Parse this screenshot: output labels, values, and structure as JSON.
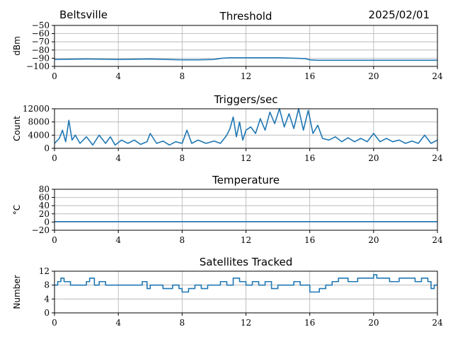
{
  "header": {
    "location": "Beltsville",
    "date": "2025/02/01"
  },
  "colors": {
    "series": "#1f77b4",
    "grid": "#b0b0b0",
    "axis": "#000000"
  },
  "chart_data": [
    {
      "type": "line",
      "title": "Threshold",
      "ylabel": "dBm",
      "xlim": [
        0,
        24
      ],
      "ylim": [
        -100,
        -50
      ],
      "xticks": [
        0,
        4,
        8,
        12,
        16,
        20,
        24
      ],
      "yticks": [
        -100,
        -90,
        -80,
        -70,
        -60,
        -50
      ],
      "grid": true,
      "series": [
        {
          "x": [
            0,
            2,
            4,
            6,
            8,
            9,
            10,
            10.5,
            11,
            12,
            13,
            14,
            15,
            15.7,
            16,
            16.5,
            18,
            20,
            22,
            24
          ],
          "y": [
            -91.5,
            -91,
            -91.5,
            -91,
            -92,
            -92,
            -91.5,
            -90,
            -89.5,
            -89.5,
            -89.5,
            -89.5,
            -90,
            -90.5,
            -92,
            -92.5,
            -92.5,
            -92.5,
            -92.5,
            -92.5
          ]
        }
      ]
    },
    {
      "type": "line",
      "title": "Triggers/sec",
      "ylabel": "Count",
      "xlim": [
        0,
        24
      ],
      "ylim": [
        0,
        12000
      ],
      "xticks": [
        0,
        4,
        8,
        12,
        16,
        20,
        24
      ],
      "yticks": [
        0,
        4000,
        8000,
        12000
      ],
      "grid": true,
      "series": [
        {
          "x": [
            0,
            0.3,
            0.5,
            0.7,
            0.9,
            1.1,
            1.3,
            1.6,
            2,
            2.4,
            2.8,
            3.2,
            3.5,
            3.8,
            4.2,
            4.6,
            5,
            5.4,
            5.8,
            6,
            6.4,
            6.8,
            7.2,
            7.6,
            8,
            8.3,
            8.6,
            9,
            9.5,
            10,
            10.4,
            10.8,
            11,
            11.2,
            11.4,
            11.6,
            11.8,
            12,
            12.3,
            12.6,
            12.9,
            13.2,
            13.5,
            13.8,
            14.1,
            14.4,
            14.7,
            15,
            15.3,
            15.6,
            15.9,
            16.2,
            16.5,
            16.8,
            17.2,
            17.6,
            18,
            18.4,
            18.8,
            19.2,
            19.6,
            20,
            20.4,
            20.8,
            21.2,
            21.6,
            22,
            22.4,
            22.8,
            23.2,
            23.6,
            24
          ],
          "y": [
            1500,
            3000,
            5500,
            2000,
            8500,
            2500,
            4000,
            1500,
            3500,
            1000,
            4000,
            1500,
            3500,
            1000,
            2500,
            1500,
            2500,
            1200,
            2000,
            4500,
            1500,
            2200,
            1000,
            2000,
            1500,
            5500,
            1500,
            2500,
            1500,
            2200,
            1500,
            4000,
            6000,
            9500,
            3500,
            8000,
            2500,
            5500,
            6500,
            4500,
            9000,
            5500,
            11000,
            7500,
            12000,
            6500,
            10500,
            6000,
            12000,
            5500,
            11500,
            4500,
            7000,
            3000,
            2500,
            3500,
            2000,
            3200,
            2000,
            3000,
            2000,
            4500,
            2000,
            3000,
            2000,
            2500,
            1500,
            2200,
            1500,
            4000,
            1500,
            2500
          ]
        }
      ]
    },
    {
      "type": "line",
      "title": "Temperature",
      "ylabel": "°C",
      "xlim": [
        0,
        24
      ],
      "ylim": [
        -20,
        80
      ],
      "xticks": [
        0,
        4,
        8,
        12,
        16,
        20,
        24
      ],
      "yticks": [
        -20,
        0,
        20,
        40,
        60,
        80
      ],
      "grid": true,
      "series": [
        {
          "x": [
            0,
            24
          ],
          "y": [
            1,
            1
          ]
        }
      ]
    },
    {
      "type": "line",
      "title": "Satellites Tracked",
      "ylabel": "Number",
      "xlim": [
        0,
        24
      ],
      "ylim": [
        0,
        12
      ],
      "xticks": [
        0,
        4,
        8,
        12,
        16,
        20,
        24
      ],
      "yticks": [
        0,
        4,
        8,
        12
      ],
      "grid": true,
      "step": true,
      "series": [
        {
          "x": [
            0,
            0.2,
            0.4,
            0.6,
            1.0,
            1.5,
            2.0,
            2.2,
            2.5,
            2.8,
            3.2,
            4.0,
            5.0,
            5.5,
            5.8,
            6.0,
            6.4,
            6.8,
            7.4,
            7.8,
            8.0,
            8.4,
            8.8,
            9.2,
            9.6,
            10.0,
            10.4,
            10.8,
            11.2,
            11.6,
            12.0,
            12.4,
            12.8,
            13.2,
            13.6,
            14.0,
            14.6,
            15.0,
            15.4,
            15.8,
            16.0,
            16.6,
            17.0,
            17.4,
            17.8,
            18.4,
            19.0,
            19.6,
            20.0,
            20.2,
            20.6,
            21.0,
            21.6,
            22.0,
            22.6,
            23.0,
            23.4,
            23.6,
            23.8,
            24.0
          ],
          "y": [
            8,
            9,
            10,
            9,
            8,
            8,
            9,
            10,
            8,
            9,
            8,
            8,
            8,
            9,
            7,
            8,
            8,
            7,
            8,
            7,
            6,
            7,
            8,
            7,
            8,
            8,
            9,
            8,
            10,
            9,
            8,
            9,
            8,
            9,
            7,
            8,
            8,
            9,
            8,
            8,
            6,
            7,
            8,
            9,
            10,
            9,
            10,
            10,
            11,
            10,
            10,
            9,
            10,
            10,
            9,
            10,
            9,
            7,
            8,
            8
          ]
        }
      ]
    }
  ]
}
